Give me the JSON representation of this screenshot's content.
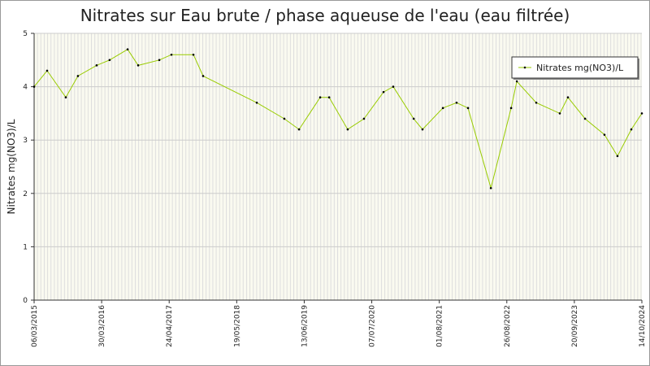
{
  "chart_data": {
    "type": "line",
    "title": "Nitrates sur Eau brute / phase aqueuse de l'eau (eau filtrée)",
    "y_label": "Nitrates mg(NO3)/L",
    "x": [
      "2015-03-06",
      "2015-05-20",
      "2015-09-05",
      "2015-11-14",
      "2016-03-01",
      "2016-05-15",
      "2016-08-27",
      "2016-10-27",
      "2017-02-26",
      "2017-05-07",
      "2017-09-11",
      "2017-11-06",
      "2018-09-12",
      "2019-02-18",
      "2019-05-14",
      "2019-09-13",
      "2019-11-04",
      "2020-02-19",
      "2020-05-23",
      "2020-09-13",
      "2020-11-08",
      "2021-03-06",
      "2021-04-26",
      "2021-08-22",
      "2021-11-09",
      "2022-01-14",
      "2022-05-26",
      "2022-09-20",
      "2022-10-23",
      "2023-02-12",
      "2023-06-28",
      "2023-08-14",
      "2023-11-21",
      "2024-03-12",
      "2024-05-26",
      "2024-08-14",
      "2024-10-14"
    ],
    "series": [
      {
        "name": "Nitrates mg(NO3)/L",
        "color": "#99cc00",
        "values": [
          4.0,
          4.3,
          3.8,
          4.2,
          4.4,
          4.5,
          4.7,
          4.4,
          4.5,
          4.6,
          4.6,
          4.2,
          3.7,
          3.4,
          3.2,
          3.8,
          3.8,
          3.2,
          3.4,
          3.9,
          4.0,
          3.4,
          3.2,
          3.6,
          3.7,
          3.6,
          2.1,
          3.6,
          4.1,
          3.7,
          3.5,
          3.8,
          3.4,
          3.1,
          2.7,
          3.2,
          3.5
        ]
      }
    ],
    "xlim": [
      "2015-03-06",
      "2024-10-14"
    ],
    "xticks": [
      {
        "value": "2015-03-06",
        "label": "06/03/2015"
      },
      {
        "value": "2016-03-30",
        "label": "30/03/2016"
      },
      {
        "value": "2017-04-24",
        "label": "24/04/2017"
      },
      {
        "value": "2018-05-19",
        "label": "19/05/2018"
      },
      {
        "value": "2019-06-13",
        "label": "13/06/2019"
      },
      {
        "value": "2020-07-07",
        "label": "07/07/2020"
      },
      {
        "value": "2021-08-01",
        "label": "01/08/2021"
      },
      {
        "value": "2022-08-26",
        "label": "26/08/2022"
      },
      {
        "value": "2023-09-20",
        "label": "20/09/2023"
      },
      {
        "value": "2024-10-14",
        "label": "14/10/2024"
      }
    ],
    "ylim": [
      0,
      5
    ],
    "yticks": [
      0,
      1,
      2,
      3,
      4,
      5
    ],
    "grid": true,
    "legend": "top-right"
  }
}
